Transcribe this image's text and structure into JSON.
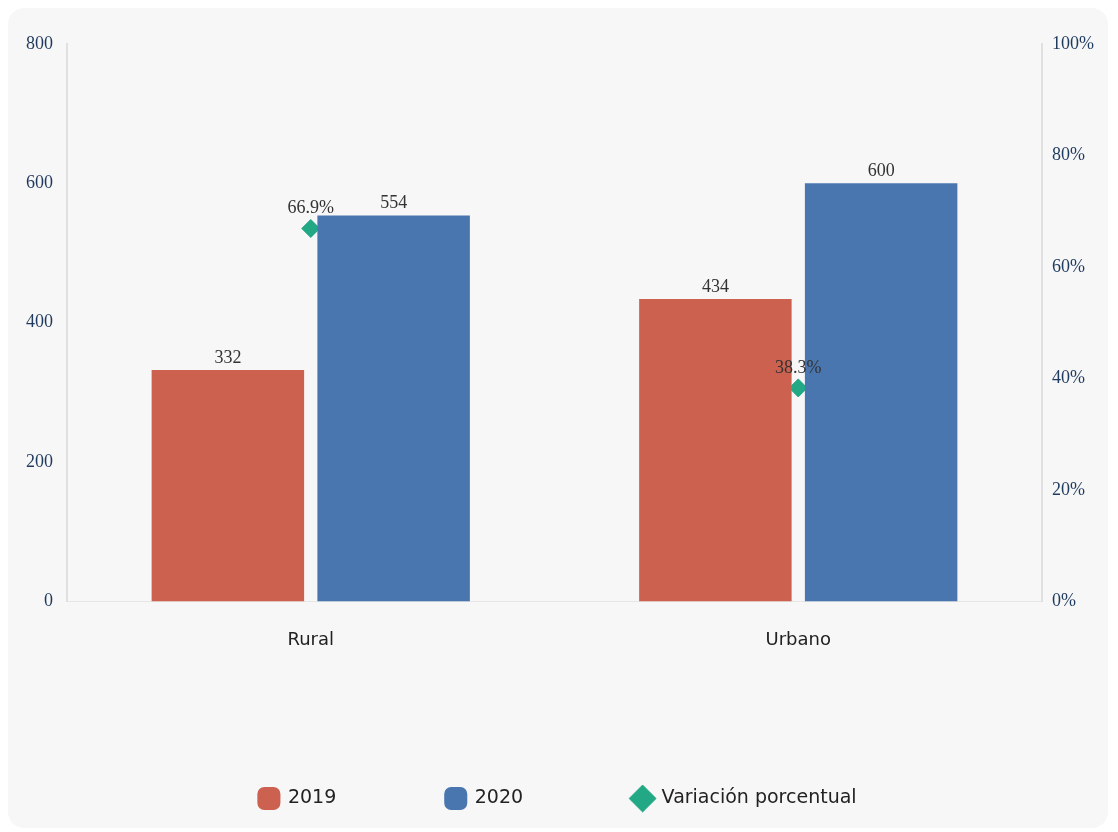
{
  "chart_data": {
    "type": "bar",
    "categories": [
      "Rural",
      "Urbano"
    ],
    "series": [
      {
        "name": "2019",
        "color": "#cd6150",
        "values": [
          332,
          434
        ]
      },
      {
        "name": "2020",
        "color": "#4a76b0",
        "values": [
          554,
          600
        ]
      },
      {
        "name": "Variación porcentual",
        "type": "scatter",
        "axis": "y2",
        "color": "#22a884",
        "x": [
          "Rural",
          "Urbano"
        ],
        "values": [
          66.9,
          38.3
        ],
        "value_labels": [
          "66.9%",
          "38.3%"
        ]
      }
    ],
    "ylim": [
      0,
      800
    ],
    "yticks": [
      0,
      200,
      400,
      600,
      800
    ],
    "y2lim": [
      0,
      100
    ],
    "y2ticks": [
      {
        "value": 0,
        "label": "0%"
      },
      {
        "value": 20,
        "label": "20%"
      },
      {
        "value": 40,
        "label": "40%"
      },
      {
        "value": 60,
        "label": "60%"
      },
      {
        "value": 80,
        "label": "80%"
      },
      {
        "value": 100,
        "label": "100%"
      }
    ],
    "data_labels": true,
    "grid": false,
    "legend": "bottom",
    "marker": "diamond"
  }
}
